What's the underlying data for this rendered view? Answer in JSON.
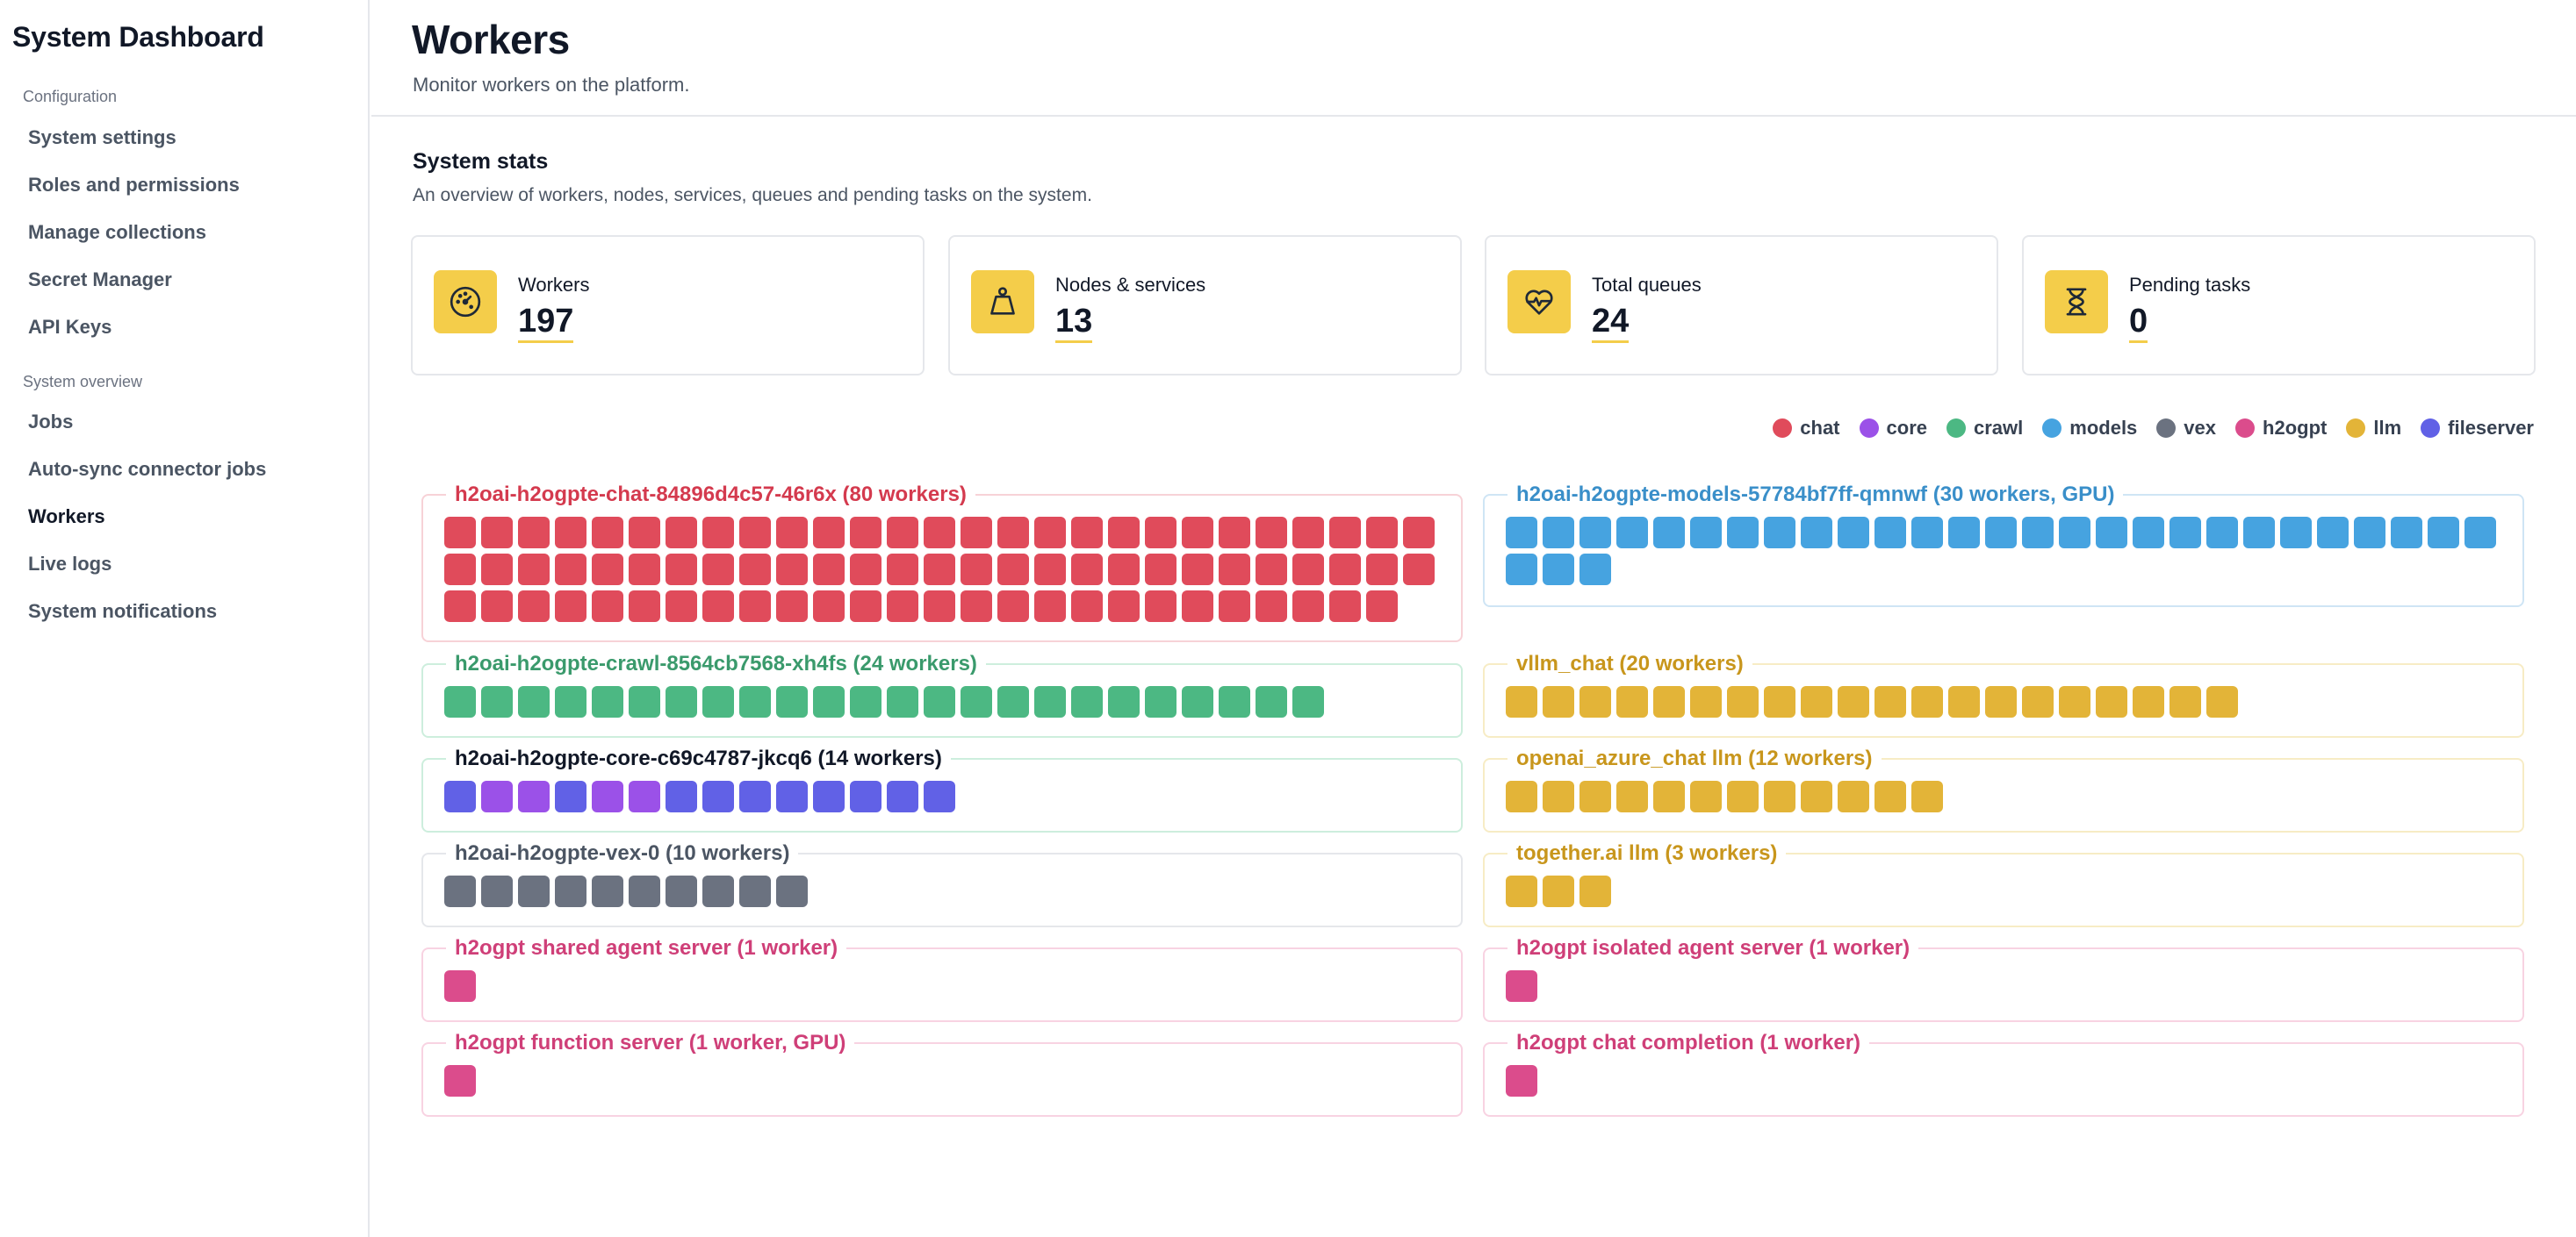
{
  "app": {
    "title": "System Dashboard"
  },
  "sidebar": {
    "sections": [
      {
        "label": "Configuration"
      },
      {
        "label": "System overview"
      }
    ],
    "items": [
      {
        "label": "System settings"
      },
      {
        "label": "Roles and permissions"
      },
      {
        "label": "Manage collections"
      },
      {
        "label": "Secret Manager"
      },
      {
        "label": "API Keys"
      },
      {
        "label": "Jobs"
      },
      {
        "label": "Auto-sync connector jobs"
      },
      {
        "label": "Workers",
        "active": true
      },
      {
        "label": "Live logs"
      },
      {
        "label": "System notifications"
      }
    ]
  },
  "page": {
    "title": "Workers",
    "subtitle": "Monitor workers on the platform."
  },
  "stats": {
    "title": "System stats",
    "description": "An overview of workers, nodes, services, queues and pending tasks on the system.",
    "cards": [
      {
        "label": "Workers",
        "value": "197",
        "icon": "gauge-icon"
      },
      {
        "label": "Nodes & services",
        "value": "13",
        "icon": "weight-icon"
      },
      {
        "label": "Total queues",
        "value": "24",
        "icon": "heartbeat-icon"
      },
      {
        "label": "Pending tasks",
        "value": "0",
        "icon": "hourglass-icon"
      }
    ]
  },
  "colors": {
    "chat": "#e04b5b",
    "core": "#9b51e8",
    "crawl": "#4cb883",
    "models": "#46a3e0",
    "vex": "#6b7280",
    "h2ogpt": "#db4c8c",
    "llm": "#e3b438",
    "fileserver": "#6161e6"
  },
  "legend": [
    {
      "label": "chat",
      "key": "chat"
    },
    {
      "label": "core",
      "key": "core"
    },
    {
      "label": "crawl",
      "key": "crawl"
    },
    {
      "label": "models",
      "key": "models"
    },
    {
      "label": "vex",
      "key": "vex"
    },
    {
      "label": "h2ogpt",
      "key": "h2ogpt"
    },
    {
      "label": "llm",
      "key": "llm"
    },
    {
      "label": "fileserver",
      "key": "fileserver"
    }
  ],
  "groups": {
    "left": [
      {
        "title": "h2oai-h2ogpte-chat-84896d4c57-46r6x (80 workers)",
        "title_color": "#d43a4e",
        "border_color": "#f7d2d7",
        "workers": [
          {
            "type": "chat",
            "count": 80
          }
        ]
      },
      {
        "title": "h2oai-h2ogpte-crawl-8564cb7568-xh4fs (24 workers)",
        "title_color": "#3a9a6c",
        "border_color": "#cdeedd",
        "workers": [
          {
            "type": "crawl",
            "count": 24
          }
        ]
      },
      {
        "title": "h2oai-h2ogpte-core-c69c4787-jkcq6 (14 workers)",
        "title_color": "#111827",
        "border_color": "#cdeedd",
        "workers": [
          {
            "type": "fileserver",
            "count": 1
          },
          {
            "type": "core",
            "count": 2
          },
          {
            "type": "fileserver",
            "count": 1
          },
          {
            "type": "core",
            "count": 2
          },
          {
            "type": "fileserver",
            "count": 8
          }
        ]
      },
      {
        "title": "h2oai-h2ogpte-vex-0 (10 workers)",
        "title_color": "#4b5563",
        "border_color": "#e5e7eb",
        "workers": [
          {
            "type": "vex",
            "count": 10
          }
        ]
      },
      {
        "title": "h2ogpt shared agent server (1 worker)",
        "title_color": "#cf3f78",
        "border_color": "#f8d3e2",
        "workers": [
          {
            "type": "h2ogpt",
            "count": 1
          }
        ]
      },
      {
        "title": "h2ogpt function server (1 worker, GPU)",
        "title_color": "#cf3f78",
        "border_color": "#f8d3e2",
        "workers": [
          {
            "type": "h2ogpt",
            "count": 1
          }
        ]
      }
    ],
    "right": [
      {
        "title": "h2oai-h2ogpte-models-57784bf7ff-qmnwf (30 workers, GPU)",
        "title_color": "#3a8fc9",
        "border_color": "#cfe5f5",
        "workers": [
          {
            "type": "models",
            "count": 30
          }
        ]
      },
      {
        "title": "vllm_chat (20 workers)",
        "title_color": "#c8961c",
        "border_color": "#f7ecc5",
        "workers": [
          {
            "type": "llm",
            "count": 20
          }
        ]
      },
      {
        "title": "openai_azure_chat llm (12 workers)",
        "title_color": "#c8961c",
        "border_color": "#f7ecc5",
        "workers": [
          {
            "type": "llm",
            "count": 12
          }
        ]
      },
      {
        "title": "together.ai llm (3 workers)",
        "title_color": "#c8961c",
        "border_color": "#f7ecc5",
        "workers": [
          {
            "type": "llm",
            "count": 3
          }
        ]
      },
      {
        "title": "h2ogpt isolated agent server (1 worker)",
        "title_color": "#cf3f78",
        "border_color": "#f8d3e2",
        "workers": [
          {
            "type": "h2ogpt",
            "count": 1
          }
        ]
      },
      {
        "title": "h2ogpt chat completion (1 worker)",
        "title_color": "#cf3f78",
        "border_color": "#f8d3e2",
        "workers": [
          {
            "type": "h2ogpt",
            "count": 1
          }
        ]
      }
    ]
  }
}
